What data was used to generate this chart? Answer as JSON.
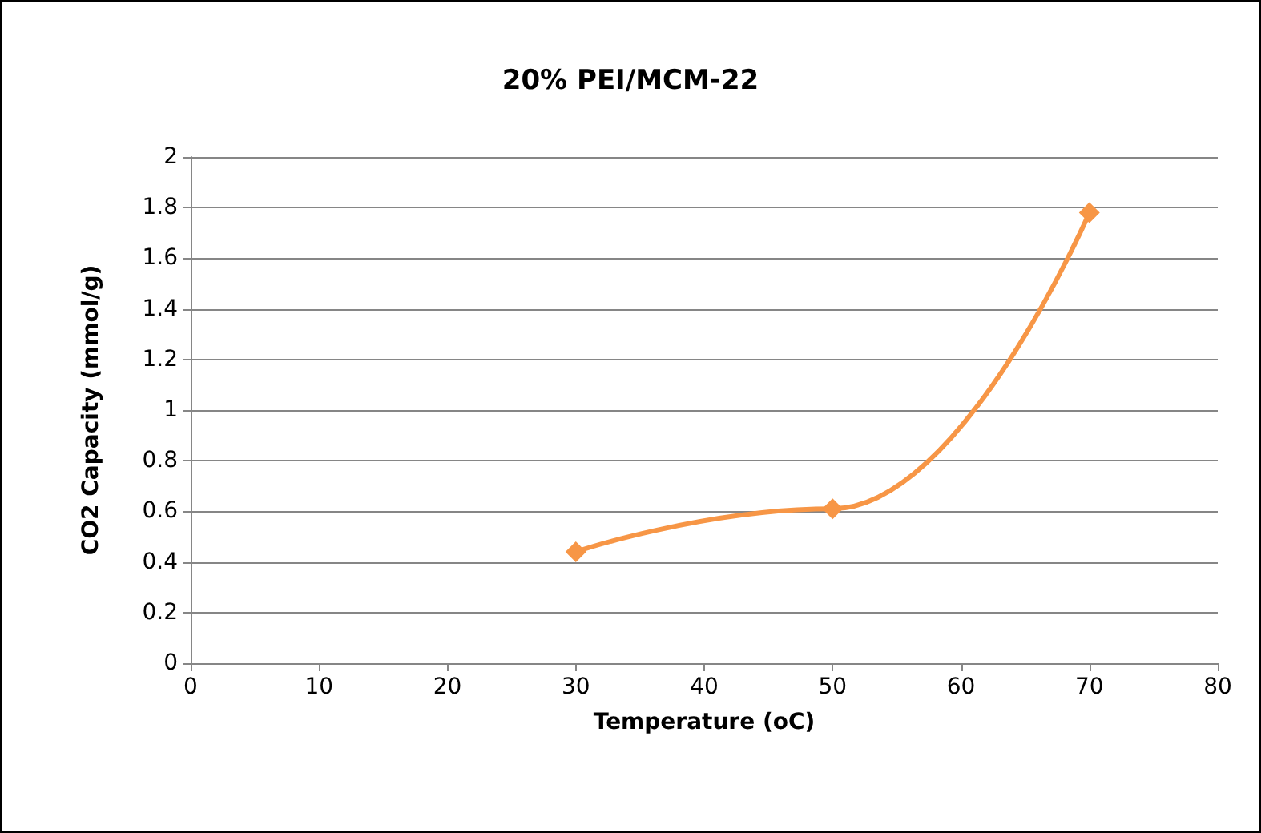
{
  "chart_data": {
    "type": "line",
    "title": "20% PEI/MCM-22",
    "xlabel": "Temperature (oC)",
    "ylabel": "CO2 Capacity (mmol/g)",
    "x": [
      30,
      50,
      70
    ],
    "series": [
      {
        "color": "#f79646",
        "values": [
          0.44,
          0.61,
          1.78
        ]
      }
    ],
    "xlim": [
      0,
      80
    ],
    "xticks": [
      0,
      10,
      20,
      30,
      40,
      50,
      60,
      70,
      80
    ],
    "ylim": [
      0,
      2
    ],
    "yticks": [
      0,
      0.2,
      0.4,
      0.6,
      0.8,
      1,
      1.2,
      1.4,
      1.6,
      1.8,
      2
    ],
    "grid": "y",
    "marker": "diamond",
    "line_style": "solid"
  }
}
